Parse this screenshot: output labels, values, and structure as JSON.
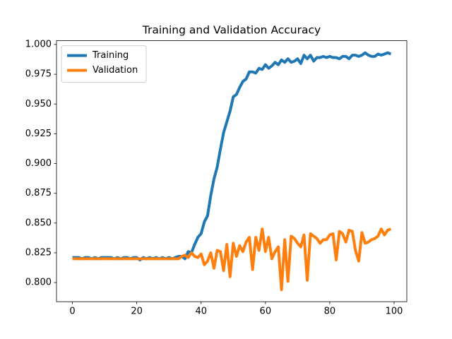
{
  "chart_data": {
    "type": "line",
    "title": "Training and Validation Accuracy",
    "x": [
      0,
      1,
      2,
      3,
      4,
      5,
      6,
      7,
      8,
      9,
      10,
      11,
      12,
      13,
      14,
      15,
      16,
      17,
      18,
      19,
      20,
      21,
      22,
      23,
      24,
      25,
      26,
      27,
      28,
      29,
      30,
      31,
      32,
      33,
      34,
      35,
      36,
      37,
      38,
      39,
      40,
      41,
      42,
      43,
      44,
      45,
      46,
      47,
      48,
      49,
      50,
      51,
      52,
      53,
      54,
      55,
      56,
      57,
      58,
      59,
      60,
      61,
      62,
      63,
      64,
      65,
      66,
      67,
      68,
      69,
      70,
      71,
      72,
      73,
      74,
      75,
      76,
      77,
      78,
      79,
      80,
      81,
      82,
      83,
      84,
      85,
      86,
      87,
      88,
      89,
      90,
      91,
      92,
      93,
      94,
      95,
      96,
      97,
      98,
      99
    ],
    "series": [
      {
        "name": "Training",
        "color": "#1f77b4",
        "values": [
          0.821,
          0.821,
          0.821,
          0.82,
          0.821,
          0.821,
          0.82,
          0.821,
          0.82,
          0.821,
          0.821,
          0.821,
          0.821,
          0.82,
          0.821,
          0.82,
          0.821,
          0.821,
          0.82,
          0.821,
          0.821,
          0.819,
          0.821,
          0.82,
          0.821,
          0.82,
          0.821,
          0.82,
          0.821,
          0.82,
          0.821,
          0.82,
          0.821,
          0.822,
          0.822,
          0.82,
          0.826,
          0.825,
          0.832,
          0.838,
          0.841,
          0.851,
          0.856,
          0.873,
          0.887,
          0.897,
          0.912,
          0.926,
          0.935,
          0.944,
          0.956,
          0.958,
          0.964,
          0.969,
          0.971,
          0.977,
          0.977,
          0.976,
          0.98,
          0.979,
          0.983,
          0.98,
          0.982,
          0.985,
          0.983,
          0.987,
          0.985,
          0.988,
          0.985,
          0.986,
          0.988,
          0.984,
          0.991,
          0.988,
          0.991,
          0.986,
          0.989,
          0.989,
          0.99,
          0.989,
          0.99,
          0.989,
          0.989,
          0.988,
          0.99,
          0.99,
          0.988,
          0.991,
          0.991,
          0.99,
          0.991,
          0.993,
          0.991,
          0.99,
          0.99,
          0.992,
          0.991,
          0.992,
          0.993,
          0.992
        ]
      },
      {
        "name": "Validation",
        "color": "#ff7f0e",
        "values": [
          0.82,
          0.82,
          0.82,
          0.82,
          0.82,
          0.82,
          0.82,
          0.82,
          0.82,
          0.82,
          0.82,
          0.82,
          0.82,
          0.82,
          0.82,
          0.82,
          0.82,
          0.82,
          0.82,
          0.82,
          0.82,
          0.82,
          0.82,
          0.82,
          0.82,
          0.82,
          0.82,
          0.82,
          0.82,
          0.82,
          0.82,
          0.82,
          0.82,
          0.82,
          0.822,
          0.823,
          0.821,
          0.825,
          0.822,
          0.821,
          0.824,
          0.815,
          0.818,
          0.825,
          0.812,
          0.827,
          0.826,
          0.81,
          0.832,
          0.805,
          0.833,
          0.822,
          0.831,
          0.826,
          0.834,
          0.838,
          0.811,
          0.838,
          0.827,
          0.845,
          0.826,
          0.838,
          0.82,
          0.826,
          0.83,
          0.794,
          0.836,
          0.801,
          0.839,
          0.837,
          0.833,
          0.83,
          0.84,
          0.802,
          0.841,
          0.839,
          0.837,
          0.833,
          0.836,
          0.836,
          0.84,
          0.841,
          0.819,
          0.843,
          0.841,
          0.834,
          0.844,
          0.843,
          0.827,
          0.818,
          0.842,
          0.833,
          0.834,
          0.836,
          0.837,
          0.839,
          0.845,
          0.84,
          0.844,
          0.845
        ]
      }
    ],
    "xlim": [
      -4.95,
      103.95
    ],
    "xticks": [
      0,
      20,
      40,
      60,
      80,
      100
    ],
    "ylim": [
      0.7839,
      1.0032
    ],
    "yticks": [
      {
        "value": 0.8,
        "label": "0.800"
      },
      {
        "value": 0.825,
        "label": "0.825"
      },
      {
        "value": 0.85,
        "label": "0.850"
      },
      {
        "value": 0.875,
        "label": "0.875"
      },
      {
        "value": 0.9,
        "label": "0.900"
      },
      {
        "value": 0.925,
        "label": "0.925"
      },
      {
        "value": 0.95,
        "label": "0.950"
      },
      {
        "value": 0.975,
        "label": "0.975"
      },
      {
        "value": 1.0,
        "label": "1.000"
      }
    ],
    "legend": "upper left",
    "grid": false
  }
}
